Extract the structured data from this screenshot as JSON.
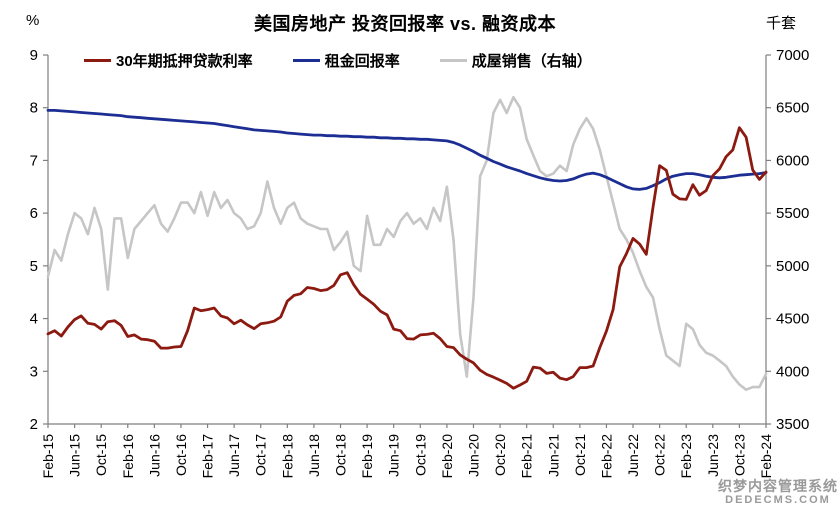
{
  "watermark": {
    "line1": "织梦内容管理系统",
    "line2": "DEDECMS.COM"
  },
  "chart_data": {
    "type": "line",
    "title": "美国房地产 投资回报率 vs. 融资成本",
    "grid": false,
    "legend_position": "top",
    "left_axis": {
      "unit": "%",
      "min": 2,
      "max": 9,
      "step": 1,
      "ticks": [
        2,
        3,
        4,
        5,
        6,
        7,
        8,
        9
      ]
    },
    "right_axis": {
      "unit": "千套",
      "min": 3500,
      "max": 7000,
      "step": 500,
      "ticks": [
        3500,
        4000,
        4500,
        5000,
        5500,
        6000,
        6500,
        7000
      ]
    },
    "x_frequency": "monthly",
    "x_points_per_tick": 4,
    "x_tick_labels": [
      "Feb-15",
      "Jun-15",
      "Oct-15",
      "Feb-16",
      "Jun-16",
      "Oct-16",
      "Feb-17",
      "Jun-17",
      "Oct-17",
      "Feb-18",
      "Jun-18",
      "Oct-18",
      "Feb-19",
      "Jun-19",
      "Oct-19",
      "Feb-20",
      "Jun-20",
      "Oct-20",
      "Feb-21",
      "Jun-21",
      "Oct-21",
      "Feb-22",
      "Jun-22",
      "Oct-22",
      "Feb-23",
      "Jun-23",
      "Oct-23",
      "Feb-24"
    ],
    "series": [
      {
        "name": "30年期抵押贷款利率",
        "axis": "left",
        "color": "#8C1A11",
        "values": [
          3.71,
          3.77,
          3.67,
          3.84,
          3.98,
          4.05,
          3.91,
          3.89,
          3.8,
          3.94,
          3.96,
          3.87,
          3.66,
          3.69,
          3.61,
          3.6,
          3.57,
          3.44,
          3.44,
          3.46,
          3.47,
          3.77,
          4.2,
          4.15,
          4.17,
          4.2,
          4.05,
          4.01,
          3.9,
          3.97,
          3.88,
          3.81,
          3.9,
          3.92,
          3.95,
          4.03,
          4.33,
          4.44,
          4.47,
          4.59,
          4.57,
          4.53,
          4.55,
          4.63,
          4.83,
          4.87,
          4.64,
          4.46,
          4.37,
          4.27,
          4.14,
          4.07,
          3.8,
          3.77,
          3.62,
          3.61,
          3.69,
          3.7,
          3.72,
          3.62,
          3.47,
          3.45,
          3.31,
          3.23,
          3.16,
          3.02,
          2.94,
          2.89,
          2.83,
          2.77,
          2.68,
          2.74,
          2.81,
          3.08,
          3.06,
          2.96,
          2.98,
          2.87,
          2.84,
          2.9,
          3.07,
          3.07,
          3.1,
          3.45,
          3.76,
          4.17,
          4.98,
          5.23,
          5.52,
          5.41,
          5.22,
          6.11,
          6.9,
          6.81,
          6.36,
          6.27,
          6.26,
          6.54,
          6.34,
          6.43,
          6.71,
          6.84,
          7.07,
          7.2,
          7.62,
          7.44,
          6.82,
          6.64,
          6.78
        ]
      },
      {
        "name": "租金回报率",
        "axis": "left",
        "color": "#1C2D93",
        "values": [
          7.95,
          7.95,
          7.94,
          7.93,
          7.92,
          7.91,
          7.9,
          7.89,
          7.88,
          7.87,
          7.86,
          7.85,
          7.83,
          7.82,
          7.81,
          7.8,
          7.79,
          7.78,
          7.77,
          7.76,
          7.75,
          7.74,
          7.73,
          7.72,
          7.71,
          7.7,
          7.68,
          7.66,
          7.64,
          7.62,
          7.6,
          7.58,
          7.57,
          7.56,
          7.55,
          7.54,
          7.52,
          7.51,
          7.5,
          7.49,
          7.48,
          7.48,
          7.47,
          7.47,
          7.46,
          7.46,
          7.45,
          7.45,
          7.44,
          7.44,
          7.43,
          7.43,
          7.42,
          7.42,
          7.41,
          7.41,
          7.4,
          7.4,
          7.39,
          7.38,
          7.37,
          7.34,
          7.29,
          7.23,
          7.17,
          7.1,
          7.04,
          6.98,
          6.93,
          6.88,
          6.84,
          6.8,
          6.75,
          6.71,
          6.67,
          6.64,
          6.62,
          6.61,
          6.62,
          6.65,
          6.7,
          6.74,
          6.76,
          6.73,
          6.68,
          6.62,
          6.56,
          6.5,
          6.46,
          6.45,
          6.47,
          6.52,
          6.58,
          6.65,
          6.7,
          6.73,
          6.75,
          6.75,
          6.73,
          6.7,
          6.68,
          6.67,
          6.68,
          6.7,
          6.72,
          6.73,
          6.74,
          6.75,
          6.77
        ]
      },
      {
        "name": "成屋销售（右轴）",
        "axis": "right",
        "color": "#C6C6C6",
        "values": [
          4900,
          5150,
          5050,
          5300,
          5500,
          5450,
          5300,
          5550,
          5350,
          4775,
          5450,
          5450,
          5075,
          5350,
          5425,
          5500,
          5575,
          5400,
          5325,
          5450,
          5600,
          5600,
          5500,
          5700,
          5475,
          5700,
          5550,
          5625,
          5500,
          5450,
          5350,
          5375,
          5500,
          5800,
          5550,
          5400,
          5550,
          5600,
          5450,
          5400,
          5375,
          5350,
          5350,
          5150,
          5225,
          5325,
          5000,
          4950,
          5475,
          5200,
          5200,
          5350,
          5275,
          5425,
          5500,
          5400,
          5450,
          5350,
          5550,
          5425,
          5750,
          5250,
          4350,
          3950,
          4700,
          5850,
          6000,
          6450,
          6575,
          6450,
          6600,
          6500,
          6200,
          6050,
          5900,
          5850,
          5875,
          5950,
          5900,
          6150,
          6300,
          6400,
          6300,
          6100,
          5850,
          5600,
          5350,
          5250,
          5125,
          4950,
          4800,
          4700,
          4400,
          4150,
          4100,
          4050,
          4450,
          4400,
          4250,
          4175,
          4150,
          4100,
          4050,
          3950,
          3875,
          3825,
          3850,
          3850,
          3975
        ]
      }
    ]
  }
}
